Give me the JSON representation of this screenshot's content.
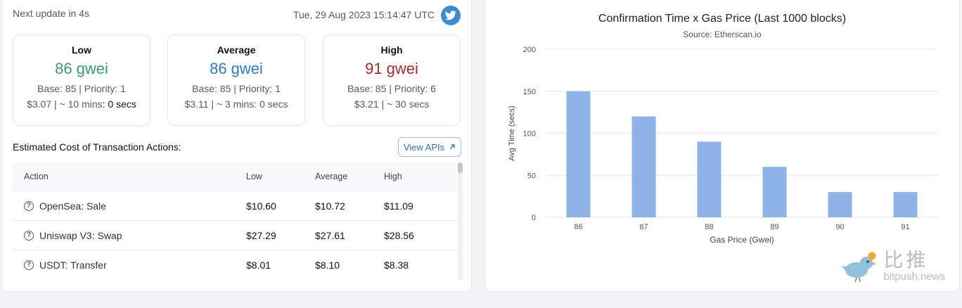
{
  "header": {
    "next_update": "Next update in 4s",
    "timestamp": "Tue, 29 Aug 2023 15:14:47 UTC",
    "twitter_icon": "twitter-bird-icon"
  },
  "cards": [
    {
      "label": "Low",
      "value": "86 gwei",
      "color": "#3a9a74",
      "base_priority": "Base: 85 | Priority: 1",
      "cost": "$3.07",
      "time_prefix": " | ~ 10 mins",
      "time_suffix": ": 0 secs"
    },
    {
      "label": "Average",
      "value": "86 gwei",
      "color": "#2e7fbe",
      "base_priority": "Base: 85 | Priority: 1",
      "cost": "$3.11",
      "time_prefix": " | ~ 3 mins",
      "time_suffix": ": 0 secs"
    },
    {
      "label": "High",
      "value": "91 gwei",
      "color": "#a32b2b",
      "base_priority": "Base: 85 | Priority: 6",
      "cost": "$3.21",
      "time_prefix": " | ~ 30 secs",
      "time_suffix": ""
    }
  ],
  "estimated": {
    "title": "Estimated Cost of Transaction Actions:",
    "view_apis_label": "View APIs",
    "columns": [
      "Action",
      "Low",
      "Average",
      "High"
    ],
    "rows": [
      {
        "action": "OpenSea: Sale",
        "low": "$10.60",
        "average": "$10.72",
        "high": "$11.09"
      },
      {
        "action": "Uniswap V3: Swap",
        "low": "$27.29",
        "average": "$27.61",
        "high": "$28.56"
      },
      {
        "action": "USDT: Transfer",
        "low": "$8.01",
        "average": "$8.10",
        "high": "$8.38"
      }
    ]
  },
  "chart_data": {
    "type": "bar",
    "title": "Confirmation Time x Gas Price (Last 1000 blocks)",
    "subtitle": "Source: Etherscan.io",
    "xlabel": "Gas Price (Gwei)",
    "ylabel": "Avg Time (secs)",
    "categories": [
      "86",
      "87",
      "88",
      "89",
      "90",
      "91"
    ],
    "values": [
      150,
      120,
      90,
      60,
      30,
      30
    ],
    "ylim": [
      0,
      200
    ],
    "yticks": [
      0,
      50,
      100,
      150,
      200
    ],
    "grid": true,
    "bar_color": "#8cb4e8"
  },
  "watermark": {
    "text": "比推",
    "sub": "bitpush.news"
  }
}
